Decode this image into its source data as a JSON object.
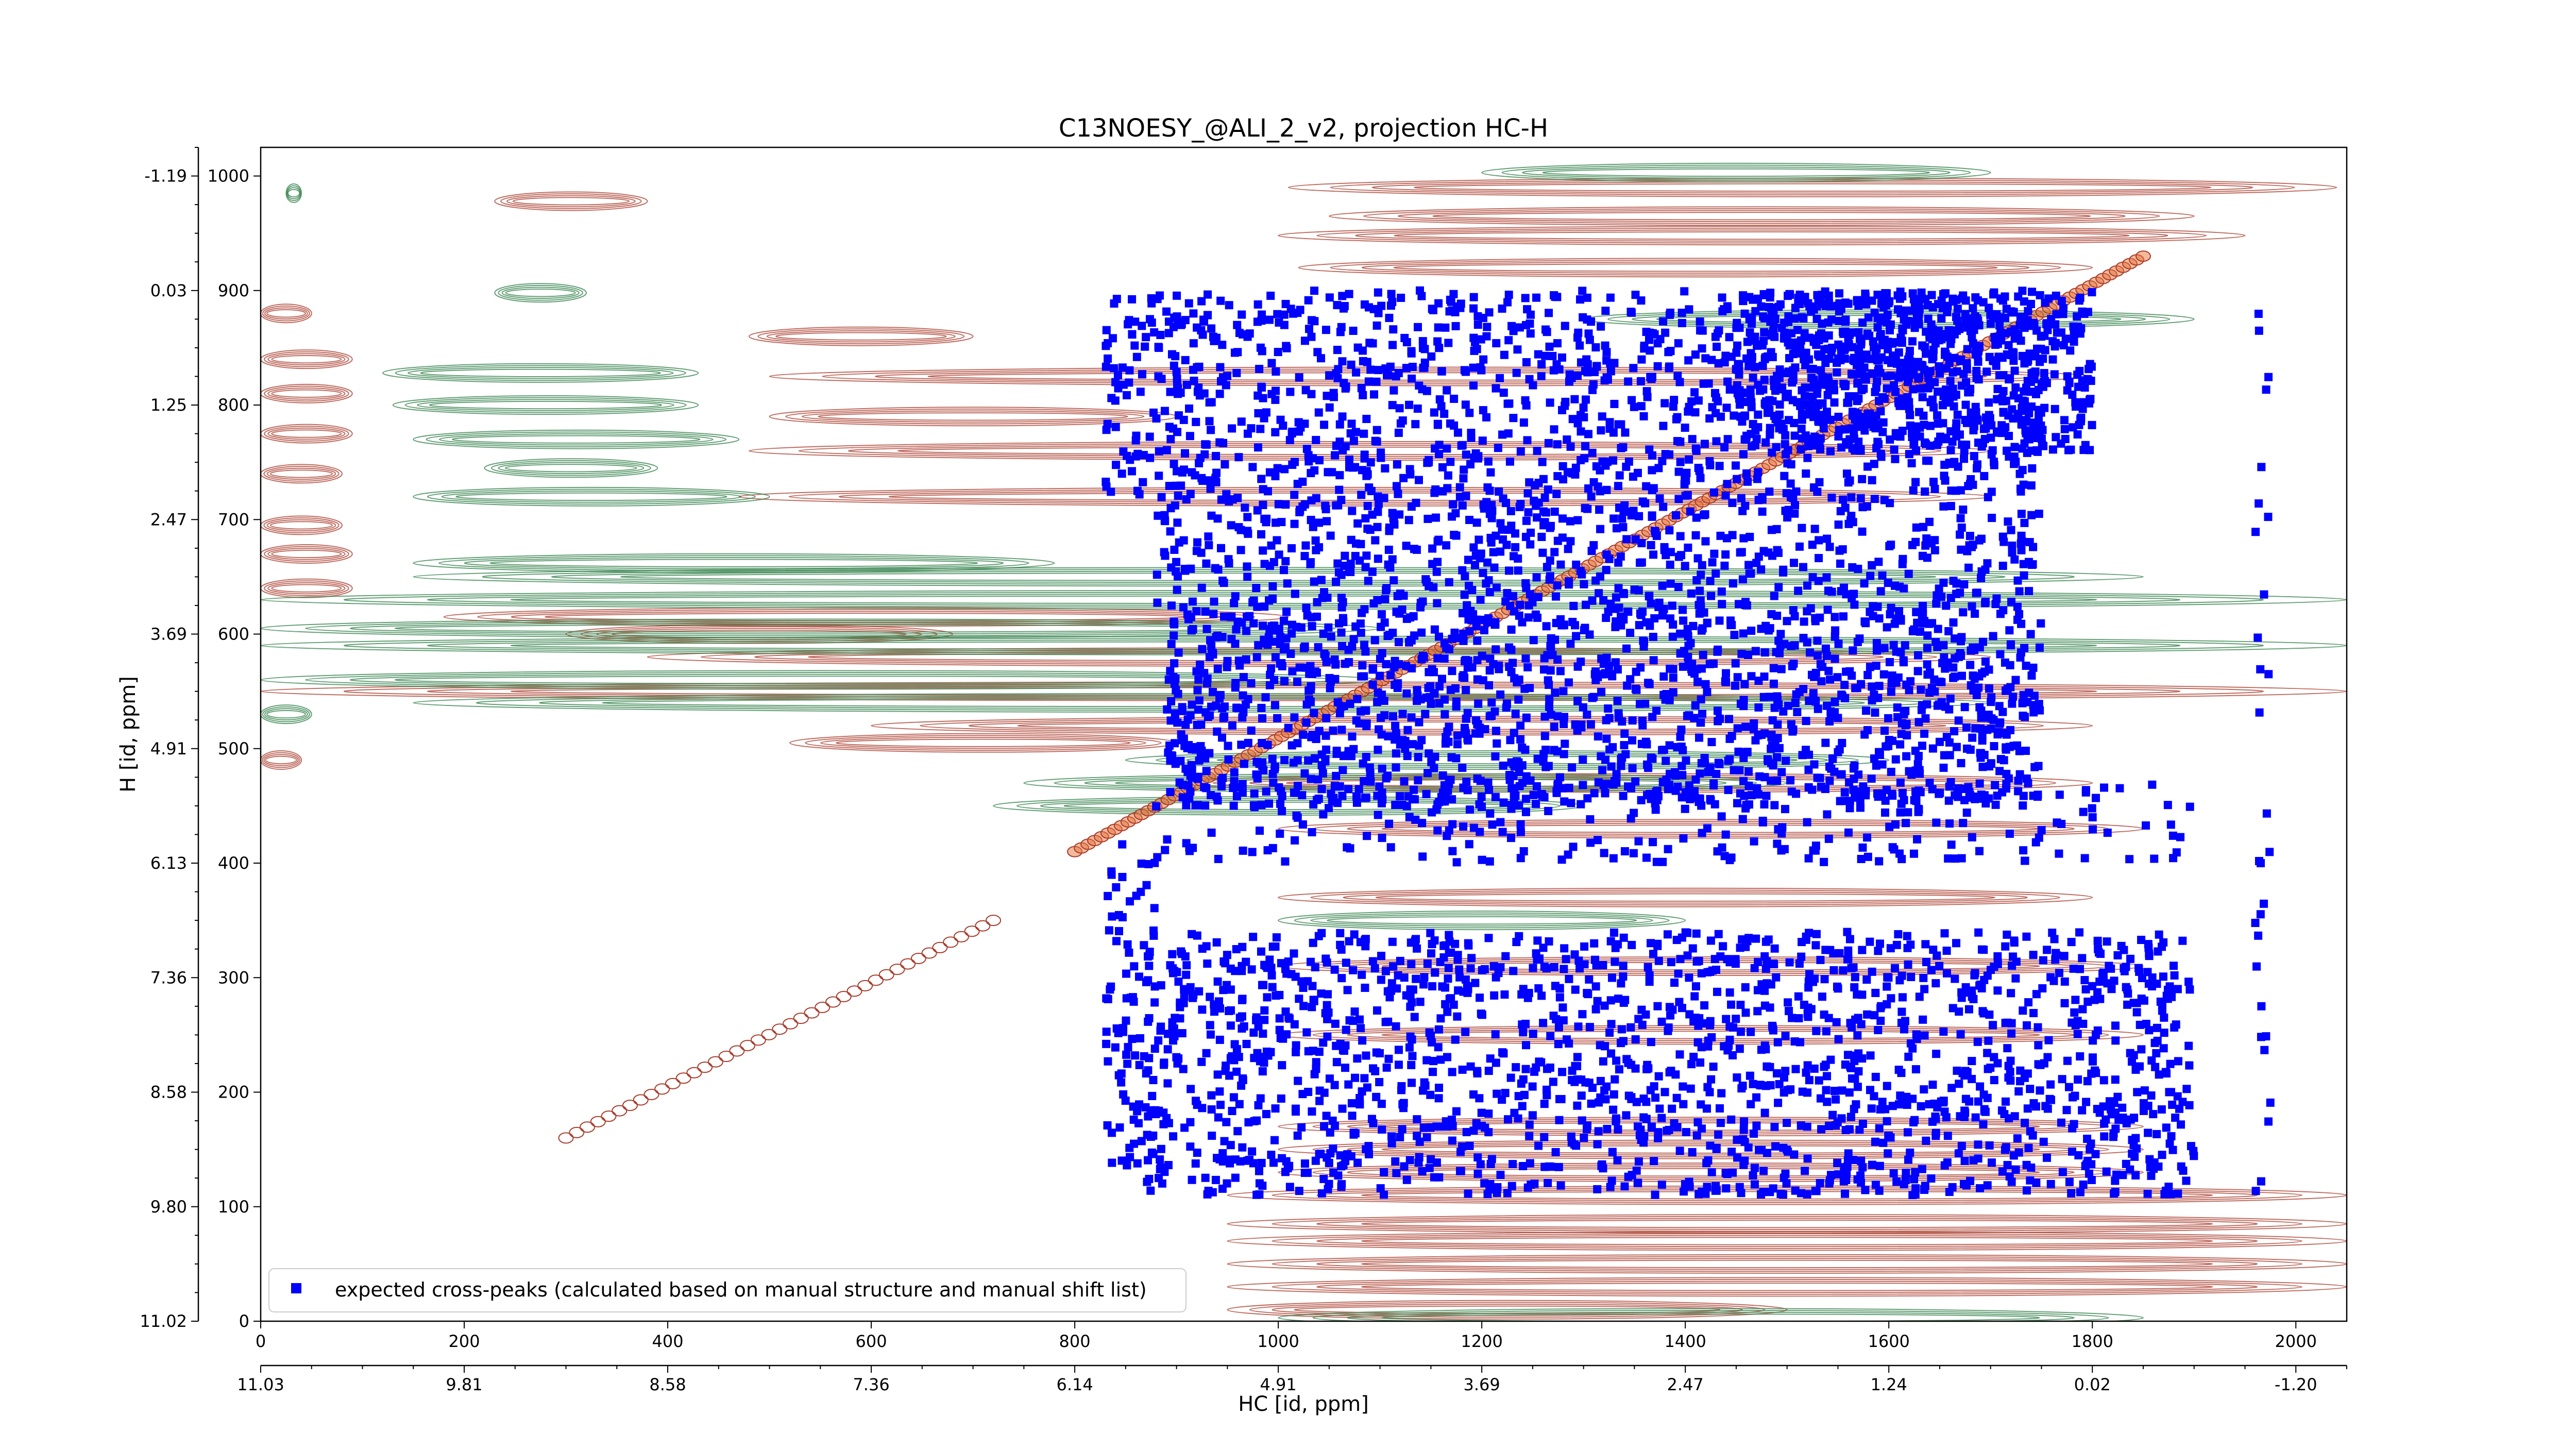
{
  "chart_data": {
    "type": "scatter",
    "title": "C13NOESY_@ALI_2_v2, projection HC-H",
    "xlabel": "HC [id, ppm]",
    "ylabel": "H [id, ppm]",
    "xlim": [
      0,
      2050
    ],
    "ylim": [
      0,
      1025
    ],
    "x_ticks": [
      0,
      200,
      400,
      600,
      800,
      1000,
      1200,
      1400,
      1600,
      1800,
      2000
    ],
    "x_tick_labels": [
      "0",
      "200",
      "400",
      "600",
      "800",
      "1000",
      "1200",
      "1400",
      "1600",
      "1800",
      "2000"
    ],
    "x_ppm_ticks": [
      0,
      200,
      400,
      600,
      800,
      1000,
      1200,
      1400,
      1600,
      1800,
      2000
    ],
    "x_ppm_labels": [
      "11.03",
      "9.81",
      "8.58",
      "7.36",
      "6.14",
      "4.91",
      "3.69",
      "2.47",
      "1.24",
      "0.02",
      "-1.20"
    ],
    "y_ticks": [
      0,
      100,
      200,
      300,
      400,
      500,
      600,
      700,
      800,
      900,
      1000
    ],
    "y_tick_labels": [
      "0",
      "100",
      "200",
      "300",
      "400",
      "500",
      "600",
      "700",
      "800",
      "900",
      "1000"
    ],
    "y_ppm_labels": [
      "11.02",
      "9.80",
      "8.58",
      "7.36",
      "6.13",
      "4.91",
      "3.69",
      "2.47",
      "1.25",
      "0.03",
      "-1.19"
    ],
    "legend": {
      "placement": "lower-left",
      "entries": [
        {
          "label": "expected cross-peaks (calculated based on manual structure and manual shift list)",
          "marker": "square",
          "color": "#0000ff"
        }
      ]
    },
    "colors": {
      "peaks": "#0000ff",
      "positive_contours": "#a83a2a",
      "negative_contours": "#2e7d45",
      "highlight": "#e8743a"
    },
    "contour_bands_positive": [
      {
        "y": 990,
        "x": [
          1010,
          2040
        ]
      },
      {
        "y": 978,
        "x": [
          230,
          380
        ]
      },
      {
        "y": 965,
        "x": [
          1050,
          1900
        ]
      },
      {
        "y": 948,
        "x": [
          1000,
          1950
        ]
      },
      {
        "y": 920,
        "x": [
          1020,
          1800
        ]
      },
      {
        "y": 880,
        "x": [
          0,
          50
        ]
      },
      {
        "y": 860,
        "x": [
          480,
          700
        ]
      },
      {
        "y": 840,
        "x": [
          0,
          90
        ]
      },
      {
        "y": 825,
        "x": [
          500,
          1800
        ]
      },
      {
        "y": 810,
        "x": [
          0,
          90
        ]
      },
      {
        "y": 790,
        "x": [
          500,
          900
        ]
      },
      {
        "y": 775,
        "x": [
          0,
          90
        ]
      },
      {
        "y": 760,
        "x": [
          480,
          1700
        ]
      },
      {
        "y": 740,
        "x": [
          0,
          80
        ]
      },
      {
        "y": 720,
        "x": [
          470,
          1700
        ]
      },
      {
        "y": 695,
        "x": [
          0,
          80
        ]
      },
      {
        "y": 670,
        "x": [
          0,
          90
        ]
      },
      {
        "y": 640,
        "x": [
          0,
          90
        ]
      },
      {
        "y": 615,
        "x": [
          180,
          1010
        ]
      },
      {
        "y": 600,
        "x": [
          300,
          680
        ]
      },
      {
        "y": 580,
        "x": [
          380,
          1700
        ]
      },
      {
        "y": 550,
        "x": [
          0,
          2050
        ]
      },
      {
        "y": 520,
        "x": [
          600,
          1800
        ]
      },
      {
        "y": 505,
        "x": [
          520,
          900
        ]
      },
      {
        "y": 490,
        "x": [
          0,
          40
        ]
      },
      {
        "y": 470,
        "x": [
          900,
          1800
        ]
      },
      {
        "y": 430,
        "x": [
          1000,
          1850
        ]
      },
      {
        "y": 370,
        "x": [
          1000,
          1800
        ]
      },
      {
        "y": 310,
        "x": [
          1000,
          1850
        ]
      },
      {
        "y": 250,
        "x": [
          1000,
          1850
        ]
      },
      {
        "y": 170,
        "x": [
          1000,
          1850
        ]
      },
      {
        "y": 150,
        "x": [
          1000,
          1850
        ]
      },
      {
        "y": 130,
        "x": [
          1000,
          1850
        ]
      },
      {
        "y": 110,
        "x": [
          950,
          2050
        ]
      },
      {
        "y": 85,
        "x": [
          950,
          2050
        ]
      },
      {
        "y": 70,
        "x": [
          950,
          2050
        ]
      },
      {
        "y": 50,
        "x": [
          950,
          2050
        ]
      },
      {
        "y": 30,
        "x": [
          950,
          2050
        ]
      },
      {
        "y": 10,
        "x": [
          950,
          1500
        ]
      }
    ],
    "contour_bands_negative": [
      {
        "y": 1003,
        "x": [
          1200,
          1700
        ]
      },
      {
        "y": 985,
        "x": [
          25,
          40
        ]
      },
      {
        "y": 898,
        "x": [
          230,
          320
        ]
      },
      {
        "y": 875,
        "x": [
          1300,
          1900
        ]
      },
      {
        "y": 828,
        "x": [
          120,
          430
        ]
      },
      {
        "y": 800,
        "x": [
          130,
          430
        ]
      },
      {
        "y": 770,
        "x": [
          150,
          470
        ]
      },
      {
        "y": 745,
        "x": [
          220,
          390
        ]
      },
      {
        "y": 720,
        "x": [
          150,
          500
        ]
      },
      {
        "y": 662,
        "x": [
          150,
          780
        ]
      },
      {
        "y": 650,
        "x": [
          150,
          1850
        ]
      },
      {
        "y": 630,
        "x": [
          0,
          2050
        ]
      },
      {
        "y": 605,
        "x": [
          0,
          1100
        ]
      },
      {
        "y": 590,
        "x": [
          0,
          2050
        ]
      },
      {
        "y": 560,
        "x": [
          0,
          1100
        ]
      },
      {
        "y": 540,
        "x": [
          150,
          1700
        ]
      },
      {
        "y": 530,
        "x": [
          0,
          50
        ]
      },
      {
        "y": 490,
        "x": [
          850,
          1600
        ]
      },
      {
        "y": 470,
        "x": [
          750,
          1500
        ]
      },
      {
        "y": 450,
        "x": [
          720,
          1300
        ]
      },
      {
        "y": 350,
        "x": [
          1000,
          1400
        ]
      },
      {
        "y": 3,
        "x": [
          1000,
          1850
        ]
      }
    ],
    "diagonal": {
      "x": [
        800,
        1850
      ],
      "y": [
        410,
        930
      ]
    },
    "faint_diagonal": {
      "x": [
        300,
        720
      ],
      "y": [
        160,
        350
      ]
    },
    "peak_clusters": [
      {
        "x": [
          870,
          1900
        ],
        "y": [
          110,
          340
        ],
        "count": 1700
      },
      {
        "x": [
          890,
          1750
        ],
        "y": [
          450,
          620
        ],
        "count": 1400
      },
      {
        "x": [
          880,
          1750
        ],
        "y": [
          620,
          900
        ],
        "count": 1700
      },
      {
        "x": [
          1450,
          1800
        ],
        "y": [
          760,
          900
        ],
        "count": 700
      },
      {
        "x": [
          830,
          880
        ],
        "y": [
          120,
          420
        ],
        "count": 90
      },
      {
        "x": [
          830,
          880
        ],
        "y": [
          720,
          900
        ],
        "count": 60
      },
      {
        "x": [
          1960,
          1975
        ],
        "y": [
          100,
          900
        ],
        "count": 30
      },
      {
        "x": [
          880,
          1900
        ],
        "y": [
          400,
          470
        ],
        "count": 250
      }
    ]
  }
}
